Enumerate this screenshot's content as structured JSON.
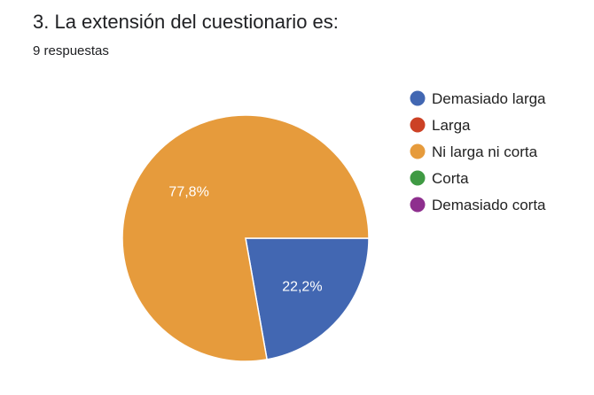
{
  "question": {
    "title": "3. La extensión del cuestionario es:",
    "responses": "9 respuestas"
  },
  "chart_data": {
    "type": "pie",
    "categories": [
      "Demasiado larga",
      "Larga",
      "Ni larga ni corta",
      "Corta",
      "Demasiado corta"
    ],
    "values": [
      2,
      0,
      7,
      0,
      0
    ],
    "percent_labels": [
      "22,2%",
      "",
      "77,8%",
      "",
      ""
    ],
    "colors": [
      "#4267b2",
      "#cc4125",
      "#e69b3c",
      "#3f9a43",
      "#8e2f8e"
    ],
    "legend": "right"
  }
}
